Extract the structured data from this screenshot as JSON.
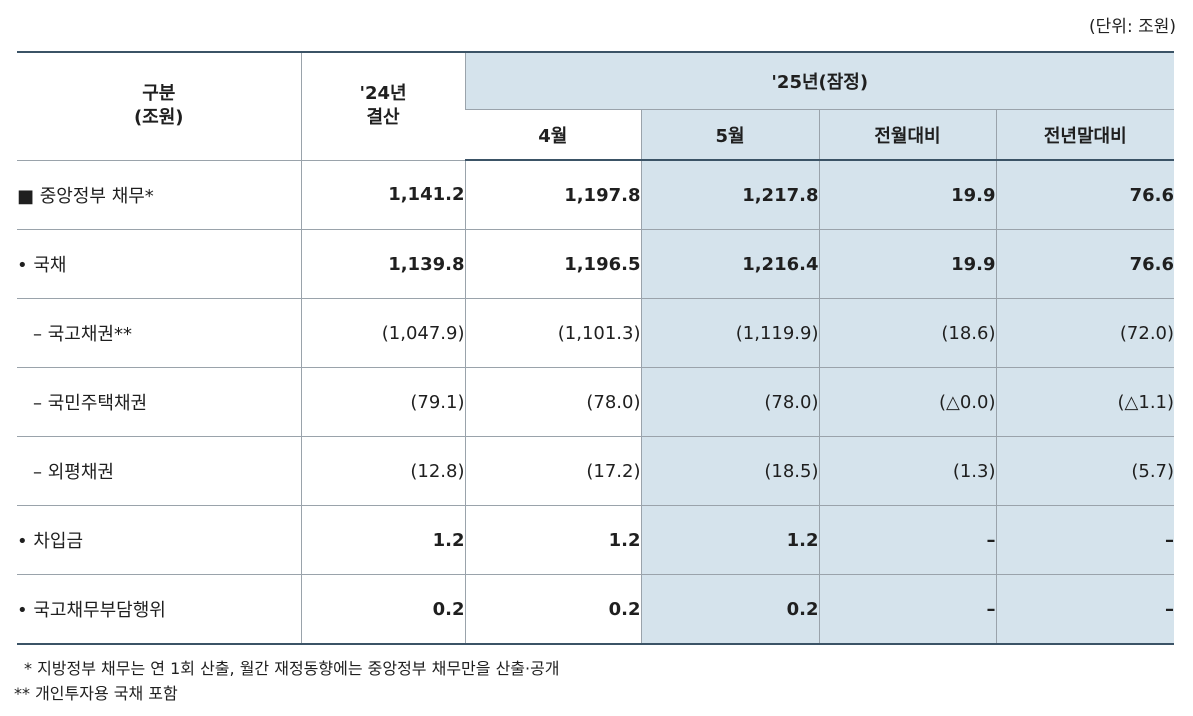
{
  "unit": "(단위: 조원)",
  "header": {
    "category": "구분",
    "category_unit": "(조원)",
    "col_2024_line1": "'24년",
    "col_2024_line2": "결산",
    "group_2025": "'25년(잠정)",
    "col_apr": "4월",
    "col_may": "5월",
    "col_mom": "전월대비",
    "col_ytd": "전년말대비"
  },
  "rows": [
    {
      "label": "■  중앙정부 채무*",
      "v2024": "1,141.2",
      "apr": "1,197.8",
      "may": "1,217.8",
      "mom": "19.9",
      "ytd": "76.6"
    },
    {
      "label": "• 국채",
      "v2024": "1,139.8",
      "apr": "1,196.5",
      "may": "1,216.4",
      "mom": "19.9",
      "ytd": "76.6"
    },
    {
      "label": "– 국고채권**",
      "v2024": "(1,047.9)",
      "apr": "(1,101.3)",
      "may": "(1,119.9)",
      "mom": "(18.6)",
      "ytd": "(72.0)"
    },
    {
      "label": "– 국민주택채권",
      "v2024": "(79.1)",
      "apr": "(78.0)",
      "may": "(78.0)",
      "mom": "(△0.0)",
      "ytd": "(△1.1)"
    },
    {
      "label": "– 외평채권",
      "v2024": "(12.8)",
      "apr": "(17.2)",
      "may": "(18.5)",
      "mom": "(1.3)",
      "ytd": "(5.7)"
    },
    {
      "label": "• 차입금",
      "v2024": "1.2",
      "apr": "1.2",
      "may": "1.2",
      "mom": "–",
      "ytd": "–"
    },
    {
      "label": "• 국고채무부담행위",
      "v2024": "0.2",
      "apr": "0.2",
      "may": "0.2",
      "mom": "–",
      "ytd": "–"
    }
  ],
  "notes": {
    "note1": "* 지방정부 채무는 연 1회 산출, 월간 재정동향에는 중앙정부 채무만을 산출·공개",
    "note2": "** 개인투자용 국채 포함"
  },
  "colors": {
    "shade": "#d5e3ec",
    "rule": "#3b5366"
  }
}
